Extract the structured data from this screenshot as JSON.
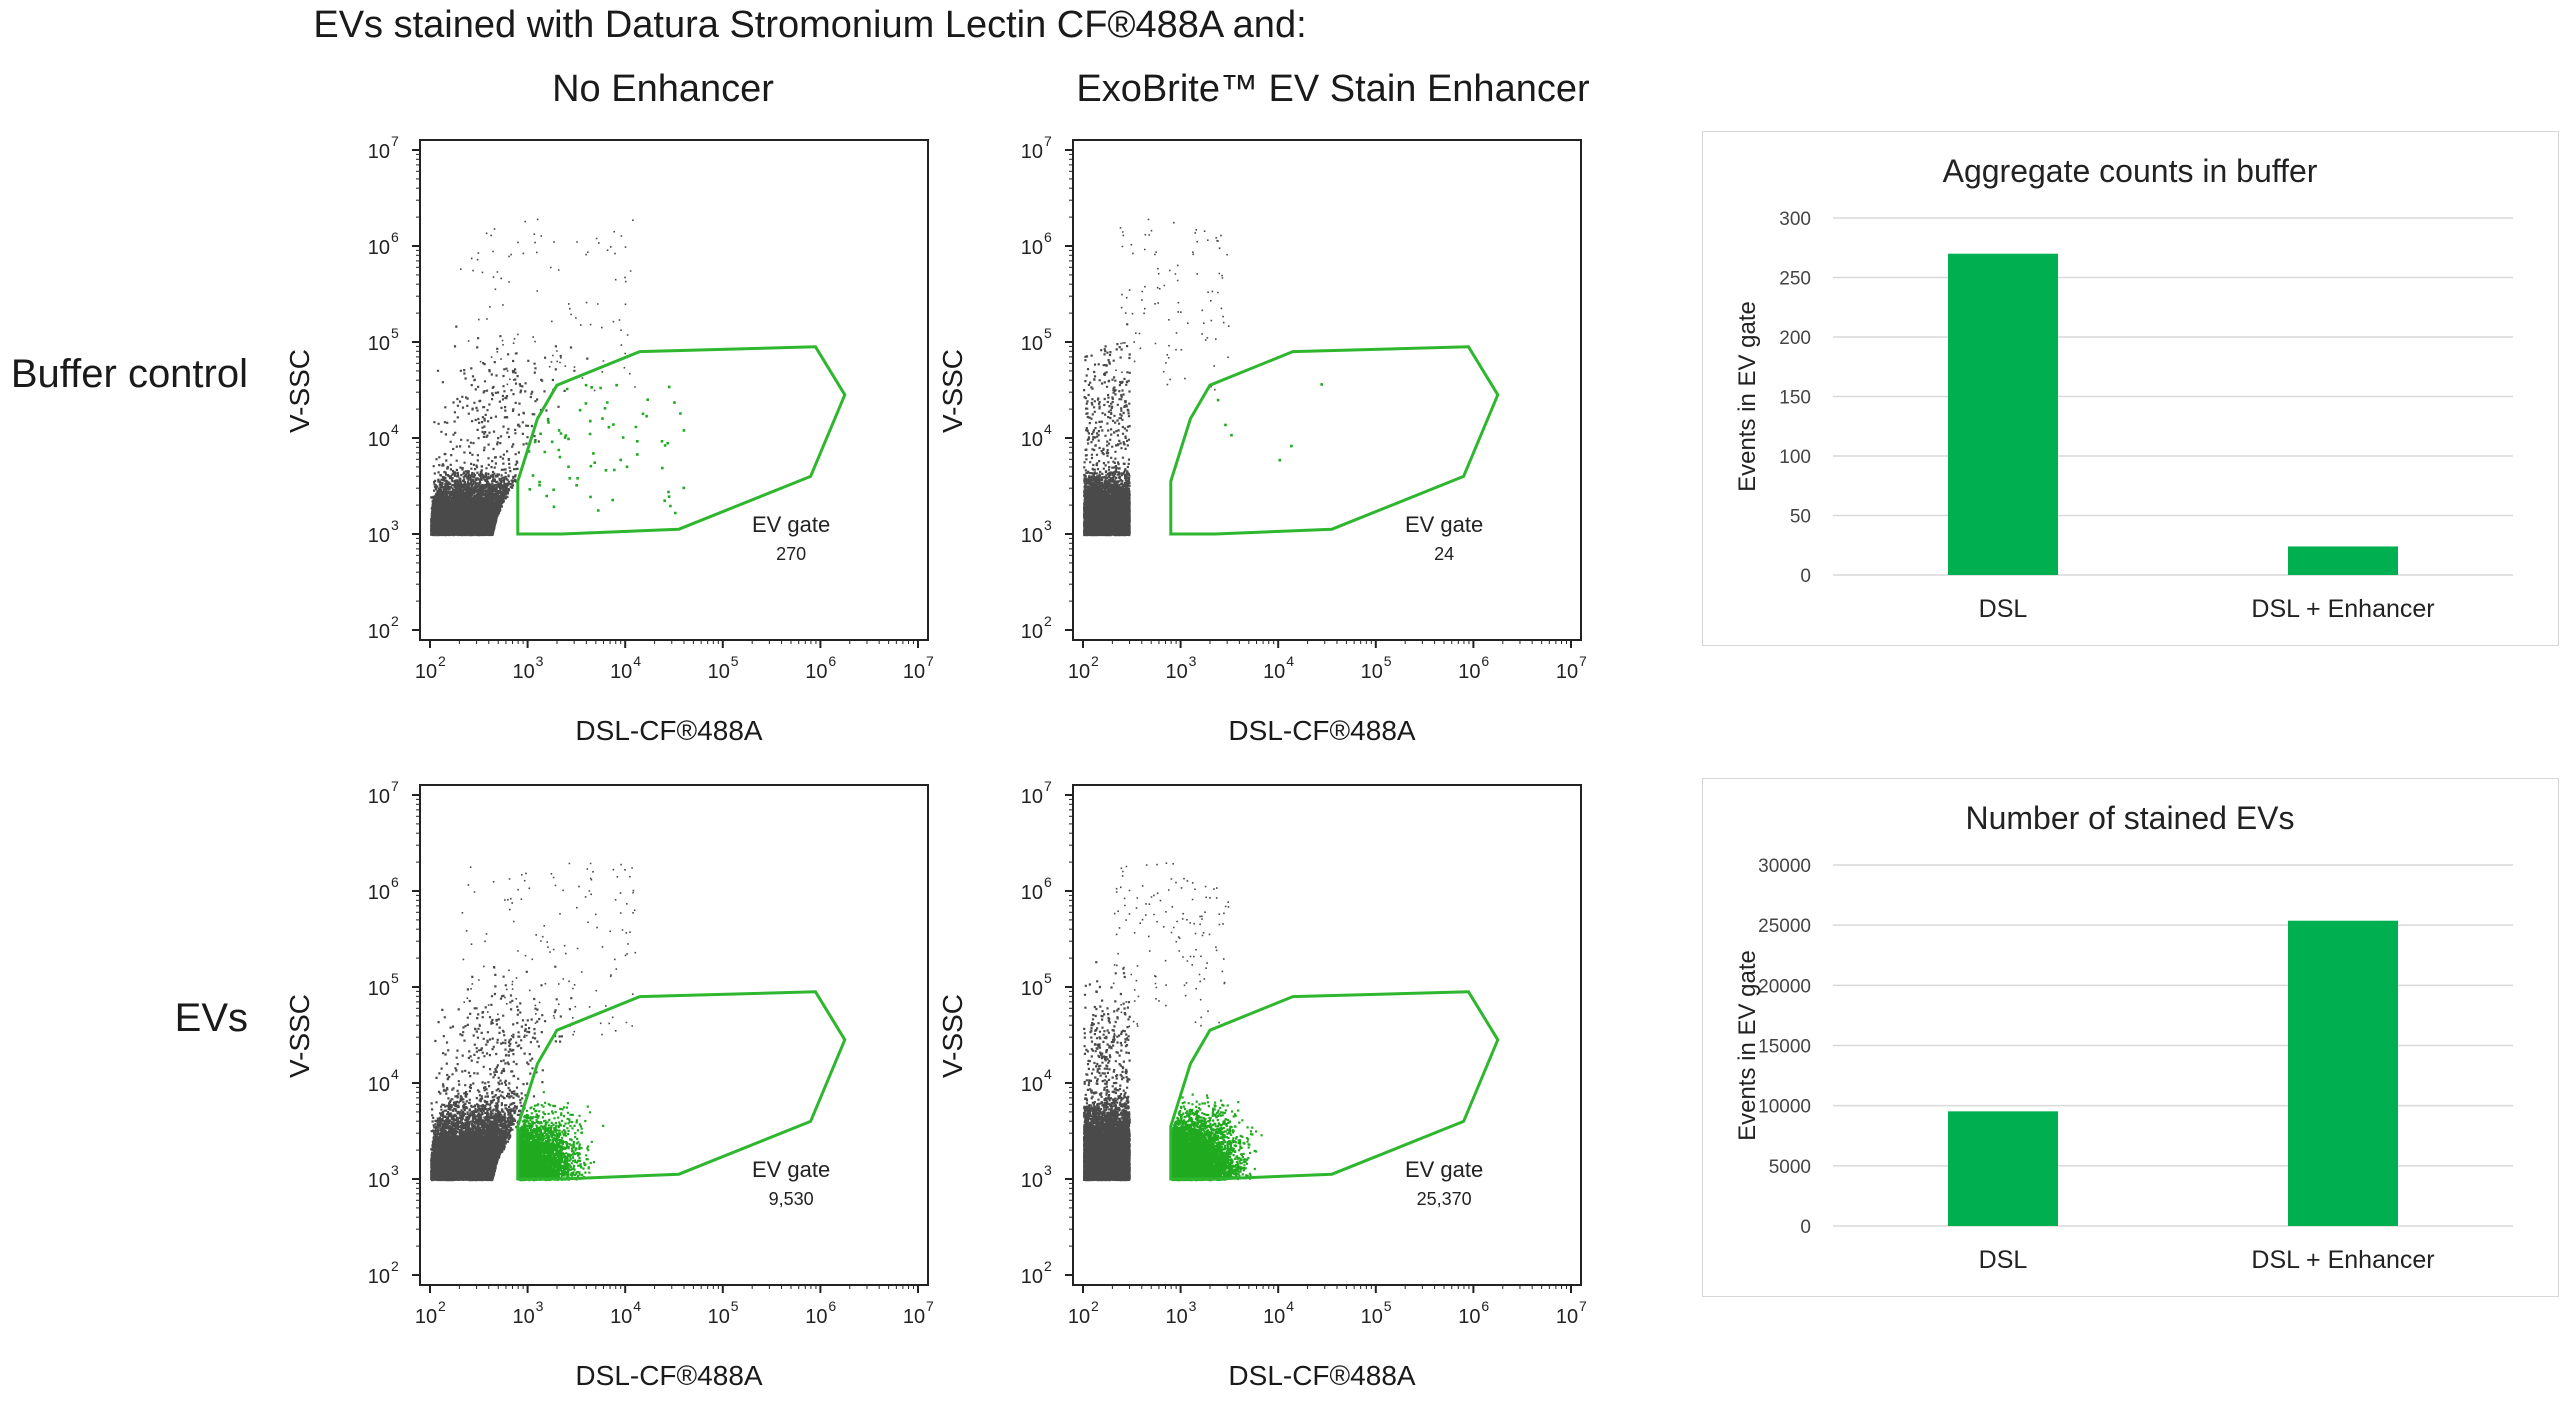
{
  "colors": {
    "dots": "#4a4a4a",
    "stained": "#1faa1f",
    "gate": "#2eb62e",
    "bar": "#00b050",
    "grid": "#d9d9d9",
    "axis": "#222222"
  },
  "header": {
    "title": "EVs stained with Datura Stromonium Lectin CF®488A and:",
    "col1": "No Enhancer",
    "col2": "ExoBrite™ EV Stain Enhancer"
  },
  "rows": {
    "buffer": "Buffer control",
    "evs": "EVs"
  },
  "axes": {
    "y_label": "V-SSC",
    "x_label": "DSL-CF®488A",
    "y_ticks": [
      "10",
      "10",
      "10",
      "10",
      "10",
      "10"
    ],
    "y_exponents": [
      "2",
      "3",
      "4",
      "5",
      "6",
      "7"
    ],
    "x_exponents": [
      "2",
      "3",
      "4",
      "5",
      "6",
      "7"
    ]
  },
  "chart_data": [
    {
      "type": "scatter",
      "title": "Buffer control — No Enhancer",
      "xlabel": "DSL-CF®488A",
      "ylabel": "V-SSC",
      "xscale": "log",
      "yscale": "log",
      "xlim": [
        100,
        10000000
      ],
      "ylim": [
        100,
        10000000
      ],
      "gate_label": "EV gate",
      "gate_count": "270",
      "gate_events": 270
    },
    {
      "type": "scatter",
      "title": "Buffer control — ExoBrite™ EV Stain Enhancer",
      "xlabel": "DSL-CF®488A",
      "ylabel": "V-SSC",
      "xscale": "log",
      "yscale": "log",
      "xlim": [
        100,
        10000000
      ],
      "ylim": [
        100,
        10000000
      ],
      "gate_label": "EV gate",
      "gate_count": "24",
      "gate_events": 24
    },
    {
      "type": "scatter",
      "title": "EVs — No Enhancer",
      "xlabel": "DSL-CF®488A",
      "ylabel": "V-SSC",
      "xscale": "log",
      "yscale": "log",
      "xlim": [
        100,
        10000000
      ],
      "ylim": [
        100,
        10000000
      ],
      "gate_label": "EV gate",
      "gate_count": "9,530",
      "gate_events": 9530
    },
    {
      "type": "scatter",
      "title": "EVs — ExoBrite™ EV Stain Enhancer",
      "xlabel": "DSL-CF®488A",
      "ylabel": "V-SSC",
      "xscale": "log",
      "yscale": "log",
      "xlim": [
        100,
        10000000
      ],
      "ylim": [
        100,
        10000000
      ],
      "gate_label": "EV gate",
      "gate_count": "25,370",
      "gate_events": 25370
    },
    {
      "type": "bar",
      "title": "Aggregate counts in buffer",
      "categories": [
        "DSL",
        "DSL + Enhancer"
      ],
      "values": [
        270,
        24
      ],
      "ylabel": "Events in EV gate",
      "ylim": [
        0,
        300
      ],
      "yticks": [
        0,
        50,
        100,
        150,
        200,
        250,
        300
      ]
    },
    {
      "type": "bar",
      "title": "Number of stained EVs",
      "categories": [
        "DSL",
        "DSL + Enhancer"
      ],
      "values": [
        9530,
        25370
      ],
      "ylabel": "Events in EV gate",
      "ylim": [
        0,
        30000
      ],
      "yticks": [
        0,
        5000,
        10000,
        15000,
        20000,
        25000,
        30000
      ]
    }
  ]
}
